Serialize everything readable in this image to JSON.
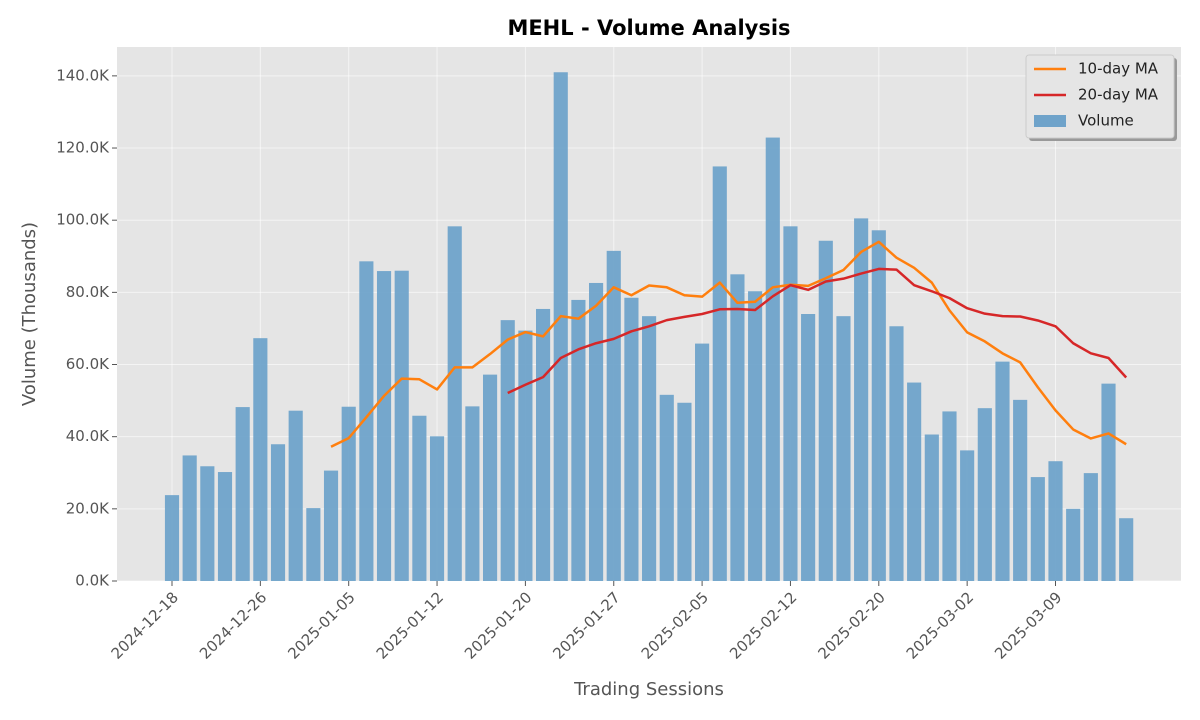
{
  "chart_data": {
    "type": "bar",
    "title": "MEHL - Volume Analysis",
    "xlabel": "Trading Sessions",
    "ylabel": "Volume (Thousands)",
    "categories": [
      "2024-12-18",
      null,
      null,
      null,
      null,
      "2024-12-26",
      null,
      null,
      null,
      null,
      "2025-01-05",
      null,
      null,
      null,
      null,
      "2025-01-12",
      null,
      null,
      null,
      null,
      "2025-01-20",
      null,
      null,
      null,
      null,
      "2025-01-27",
      null,
      null,
      null,
      null,
      "2025-02-05",
      null,
      null,
      null,
      null,
      "2025-02-12",
      null,
      null,
      null,
      null,
      "2025-02-20",
      null,
      null,
      null,
      null,
      "2025-03-02",
      null,
      null,
      null,
      null,
      "2025-03-09",
      null,
      null,
      null,
      null
    ],
    "series": [
      {
        "name": "10-day MA",
        "kind": "line",
        "color": "#ff7f0e",
        "values": [
          null,
          null,
          null,
          null,
          null,
          null,
          null,
          null,
          null,
          37200,
          39600,
          45400,
          51300,
          56100,
          55900,
          53100,
          59200,
          59200,
          62900,
          66900,
          69000,
          67800,
          73400,
          72700,
          76300,
          81400,
          79200,
          81900,
          81400,
          79200,
          78800,
          82700,
          77100,
          77400,
          81400,
          82100,
          81800,
          83900,
          86200,
          91200,
          94000,
          89600,
          86800,
          82700,
          75000,
          68900,
          66400,
          63100,
          60600,
          53700,
          47300,
          42000,
          39500,
          40900,
          37900
        ]
      },
      {
        "name": "20-day MA",
        "kind": "line",
        "color": "#d62728",
        "values": [
          null,
          null,
          null,
          null,
          null,
          null,
          null,
          null,
          null,
          null,
          null,
          null,
          null,
          null,
          null,
          null,
          null,
          null,
          null,
          52100,
          54400,
          56500,
          61800,
          64200,
          65900,
          67100,
          69200,
          70600,
          72300,
          73200,
          74000,
          75300,
          75400,
          75100,
          78900,
          82000,
          80700,
          83000,
          83800,
          85200,
          86500,
          86300,
          82000,
          80300,
          78400,
          75600,
          74100,
          73400,
          73300,
          72200,
          70600,
          65900,
          63100,
          61800,
          56400
        ]
      },
      {
        "name": "Volume",
        "kind": "bar",
        "color": "#6fa3ca",
        "values": [
          23800,
          34800,
          31800,
          30200,
          48200,
          67300,
          37900,
          47200,
          20200,
          30600,
          48300,
          88600,
          85900,
          86000,
          45800,
          40100,
          98300,
          48400,
          57200,
          72300,
          69400,
          75400,
          141000,
          77900,
          82600,
          91500,
          78500,
          73400,
          51600,
          49400,
          65800,
          114900,
          85000,
          80300,
          122900,
          98300,
          74000,
          94300,
          73400,
          100500,
          97200,
          70600,
          55000,
          40600,
          47000,
          36200,
          47900,
          60800,
          50200,
          28800,
          33200,
          20000,
          29900,
          54700,
          17400
        ]
      }
    ],
    "ylim": [
      0,
      148000
    ],
    "yticks": [
      {
        "value": 0,
        "label": "0.0K"
      },
      {
        "value": 20000,
        "label": "20.0K"
      },
      {
        "value": 40000,
        "label": "40.0K"
      },
      {
        "value": 60000,
        "label": "60.0K"
      },
      {
        "value": 80000,
        "label": "80.0K"
      },
      {
        "value": 100000,
        "label": "100.0K"
      },
      {
        "value": 120000,
        "label": "120.0K"
      },
      {
        "value": 140000,
        "label": "140.0K"
      }
    ],
    "grid": true,
    "legend": "upper right"
  }
}
